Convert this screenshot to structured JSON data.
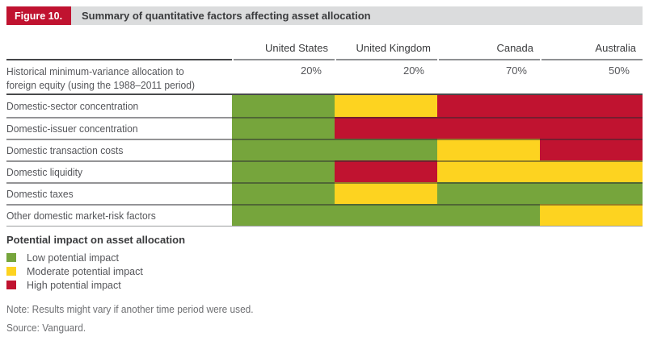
{
  "figure": {
    "badge": "Figure 10.",
    "title": "Summary of quantitative factors affecting asset allocation"
  },
  "chart_data": {
    "type": "heatmap",
    "title": "Summary of quantitative factors affecting asset allocation",
    "columns": [
      "United States",
      "United Kingdom",
      "Canada",
      "Australia"
    ],
    "allocation_row": {
      "label": "Historical minimum-variance allocation to foreign equity (using the 1988–2011 period)",
      "values": [
        "20%",
        "20%",
        "70%",
        "50%"
      ]
    },
    "factors": [
      {
        "label": "Domestic-sector concentration",
        "impacts": [
          "low",
          "moderate",
          "high",
          "high"
        ]
      },
      {
        "label": "Domestic-issuer concentration",
        "impacts": [
          "low",
          "high",
          "high",
          "high"
        ]
      },
      {
        "label": "Domestic transaction costs",
        "impacts": [
          "low",
          "low",
          "moderate",
          "high"
        ]
      },
      {
        "label": "Domestic liquidity",
        "impacts": [
          "low",
          "high",
          "moderate",
          "moderate"
        ]
      },
      {
        "label": "Domestic taxes",
        "impacts": [
          "low",
          "moderate",
          "low",
          "low"
        ]
      },
      {
        "label": "Other domestic market-risk factors",
        "impacts": [
          "low",
          "low",
          "low",
          "moderate"
        ]
      }
    ],
    "legend": {
      "title": "Potential impact on asset allocation",
      "items": [
        {
          "label": "Low potential impact",
          "level": "low"
        },
        {
          "label": "Moderate potential impact",
          "level": "moderate"
        },
        {
          "label": "High potential impact",
          "level": "high"
        }
      ]
    }
  },
  "colors": {
    "low": "#76A53C",
    "moderate": "#FDD320",
    "high": "#C01330",
    "badge_bg": "#C01330",
    "title_bar_bg": "#DBDCDD"
  },
  "notes": {
    "note": "Note: Results might vary if another time period were used.",
    "source": "Source: Vanguard."
  }
}
